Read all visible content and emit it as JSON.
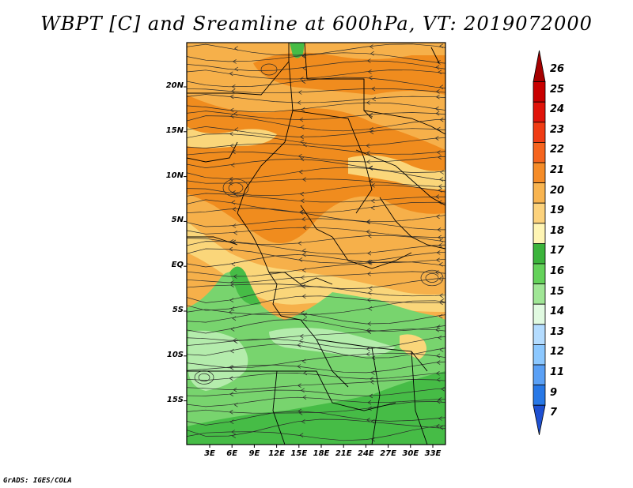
{
  "title": "WBPT [C] and Sreamline at 600hPa, VT: 2019072000",
  "credit": "GrADS: IGES/COLA",
  "map": {
    "lat_labels": [
      "20N",
      "15N",
      "10N",
      "5N",
      "EQ",
      "5S",
      "10S",
      "15S"
    ],
    "lon_labels": [
      "3E",
      "6E",
      "9E",
      "12E",
      "15E",
      "18E",
      "21E",
      "24E",
      "27E",
      "30E",
      "33E"
    ],
    "fill_colors": {
      "orange_dark": "#f08c1e",
      "orange": "#f6b04a",
      "yellow": "#fad67a",
      "green_dark": "#46bc46",
      "green": "#78d46e",
      "green_light": "#b4ecac"
    }
  },
  "colorbar": {
    "labels": [
      "26",
      "25",
      "24",
      "23",
      "22",
      "21",
      "20",
      "19",
      "18",
      "17",
      "16",
      "15",
      "14",
      "13",
      "12",
      "11",
      "9",
      "7"
    ],
    "colors": [
      "#a50000",
      "#c80000",
      "#e0140a",
      "#f03c14",
      "#f5641e",
      "#f58c28",
      "#f8b450",
      "#fcd27c",
      "#fff5b4",
      "#3cb43c",
      "#64d25a",
      "#a0e696",
      "#e1fae1",
      "#b4dcff",
      "#8cc8ff",
      "#5aa0f5",
      "#2878e6",
      "#1e50d2"
    ]
  }
}
